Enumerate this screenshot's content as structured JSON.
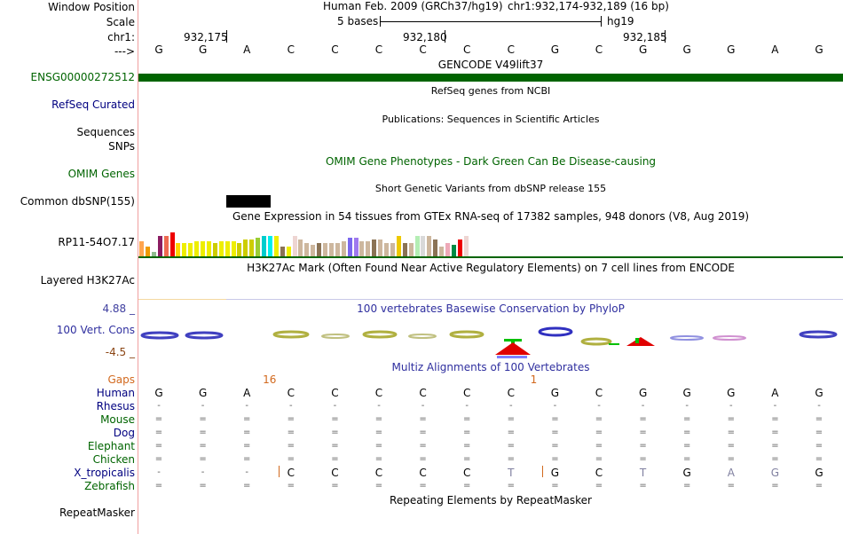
{
  "position": {
    "label_window": "Window Position",
    "label_scale": "Scale",
    "label_chr": "chr1:",
    "label_arrow": "--->",
    "assembly": "Human Feb. 2009 (GRCh37/hg19)",
    "coords": "chr1:932,174-932,189 (16 bp)",
    "scale_text": "5 bases",
    "scale_db": "hg19",
    "ticks": [
      "932,175",
      "932,180",
      "932,185"
    ]
  },
  "sequence": [
    "G",
    "G",
    "A",
    "C",
    "C",
    "C",
    "C",
    "C",
    "C",
    "G",
    "C",
    "G",
    "G",
    "G",
    "A",
    "G"
  ],
  "tracks": {
    "gencode": {
      "title": "GENCODE V49lift37",
      "label": "ENSG00000272512",
      "color": "#006400"
    },
    "refseq": {
      "title": "RefSeq genes from NCBI",
      "label": "RefSeq Curated"
    },
    "pubs": {
      "title": "Publications: Sequences in Scientific Articles",
      "label1": "Sequences",
      "label2": "SNPs"
    },
    "omim": {
      "title": "OMIM Gene Phenotypes - Dark Green Can Be Disease-causing",
      "label": "OMIM Genes"
    },
    "dbsnp": {
      "title": "Short Genetic Variants from dbSNP release 155",
      "label": "Common dbSNP(155)"
    },
    "gtex": {
      "title": "Gene Expression in 54 tissues from GTEx RNA-seq of 17382 samples, 948 donors (V8, Aug 2019)",
      "label": "RP11-54O7.17",
      "values": [
        0.45,
        0.3,
        0.12,
        0.6,
        0.6,
        0.7,
        0.4,
        0.4,
        0.4,
        0.45,
        0.45,
        0.45,
        0.4,
        0.45,
        0.45,
        0.45,
        0.4,
        0.5,
        0.5,
        0.55,
        0.6,
        0.6,
        0.6,
        0.3,
        0.3,
        0.6,
        0.5,
        0.4,
        0.35,
        0.4,
        0.4,
        0.4,
        0.4,
        0.45,
        0.55,
        0.55,
        0.45,
        0.45,
        0.5,
        0.5,
        0.4,
        0.4,
        0.6,
        0.4,
        0.4,
        0.6,
        0.6,
        0.6,
        0.5,
        0.3,
        0.4,
        0.35,
        0.5,
        0.6
      ],
      "colors": [
        "#FFA54F",
        "#EE9A00",
        "#8FBC8F",
        "#8B1C62",
        "#EE6A50",
        "#EE0000",
        "#FFD700",
        "#EEEE00",
        "#EEEE00",
        "#EEEE00",
        "#EEEE00",
        "#EEEE00",
        "#CDCD00",
        "#EEEE00",
        "#EEEE00",
        "#EEEE00",
        "#CDCD00",
        "#CDCD00",
        "#CDCD00",
        "#9ACD32",
        "#00CDCD",
        "#00EEEE",
        "#EEEE00",
        "#8B7355",
        "#EEEE00",
        "#EED5D2",
        "#CDB79E",
        "#CDB79E",
        "#CDB79E",
        "#8B7355",
        "#CDB79E",
        "#CDB79E",
        "#CDB79E",
        "#CDB79E",
        "#7A67EE",
        "#9F79EE",
        "#CDB79E",
        "#CDB79E",
        "#8B7355",
        "#CDB79E",
        "#CDB79E",
        "#CDB79E",
        "#EEC900",
        "#8B7355",
        "#CDB79E",
        "#B4EEB4",
        "#D9D9D9",
        "#CDB79E",
        "#8B7355",
        "#CDB79E",
        "#EEA9B8",
        "#008B45",
        "#EE0000",
        "#EED5D2"
      ]
    },
    "h3k27ac": {
      "title": "H3K27Ac Mark (Often Found Near Active Regulatory Elements) on 7 cell lines from ENCODE",
      "label": "Layered H3K27Ac"
    },
    "cons": {
      "title": "100 vertebrates Basewise Conservation by PhyloP",
      "label": "100 Vert. Cons",
      "max": "4.88 _",
      "min": "-4.5 _"
    },
    "multiz": {
      "title": "Multiz Alignments of 100 Vertebrates",
      "gaps_label": "Gaps",
      "gaps": [
        {
          "text": "16",
          "pos": 3
        },
        {
          "text": "1",
          "pos": 9
        }
      ],
      "species": [
        {
          "name": "Human",
          "row": [
            "G",
            "G",
            "A",
            "C",
            "C",
            "C",
            "C",
            "C",
            "C",
            "G",
            "C",
            "G",
            "G",
            "G",
            "A",
            "G"
          ]
        },
        {
          "name": "Rhesus",
          "row": [
            "-",
            "-",
            "-",
            "-",
            "-",
            "-",
            "-",
            "-",
            "-",
            "-",
            "-",
            "-",
            "-",
            "-",
            "-",
            "-"
          ]
        },
        {
          "name": "Mouse",
          "row": [
            "=",
            "=",
            "=",
            "=",
            "=",
            "=",
            "=",
            "=",
            "=",
            "=",
            "=",
            "=",
            "=",
            "=",
            "=",
            "="
          ]
        },
        {
          "name": "Dog",
          "row": [
            "=",
            "=",
            "=",
            "=",
            "=",
            "=",
            "=",
            "=",
            "=",
            "=",
            "=",
            "=",
            "=",
            "=",
            "=",
            "="
          ]
        },
        {
          "name": "Elephant",
          "row": [
            "=",
            "=",
            "=",
            "=",
            "=",
            "=",
            "=",
            "=",
            "=",
            "=",
            "=",
            "=",
            "=",
            "=",
            "=",
            "="
          ]
        },
        {
          "name": "Chicken",
          "row": [
            "=",
            "=",
            "=",
            "=",
            "=",
            "=",
            "=",
            "=",
            "=",
            "=",
            "=",
            "=",
            "=",
            "=",
            "=",
            "="
          ]
        },
        {
          "name": "X_tropicalis",
          "row": [
            "-",
            "-",
            "-",
            "C",
            "C",
            "C",
            "C",
            "C",
            "T",
            "G",
            "C",
            "T",
            "G",
            "A",
            "G",
            "G"
          ]
        },
        {
          "name": "Zebrafish",
          "row": [
            "=",
            "=",
            "=",
            "=",
            "=",
            "=",
            "=",
            "=",
            "=",
            "=",
            "=",
            "=",
            "=",
            "=",
            "=",
            "="
          ]
        }
      ]
    },
    "repeat": {
      "title": "Repeating Elements by RepeatMasker",
      "label": "RepeatMasker"
    }
  },
  "colors": {
    "accent": "#006400",
    "nav": "#000080",
    "gaps": "#D2691E",
    "cons": "#2F2F9F"
  }
}
